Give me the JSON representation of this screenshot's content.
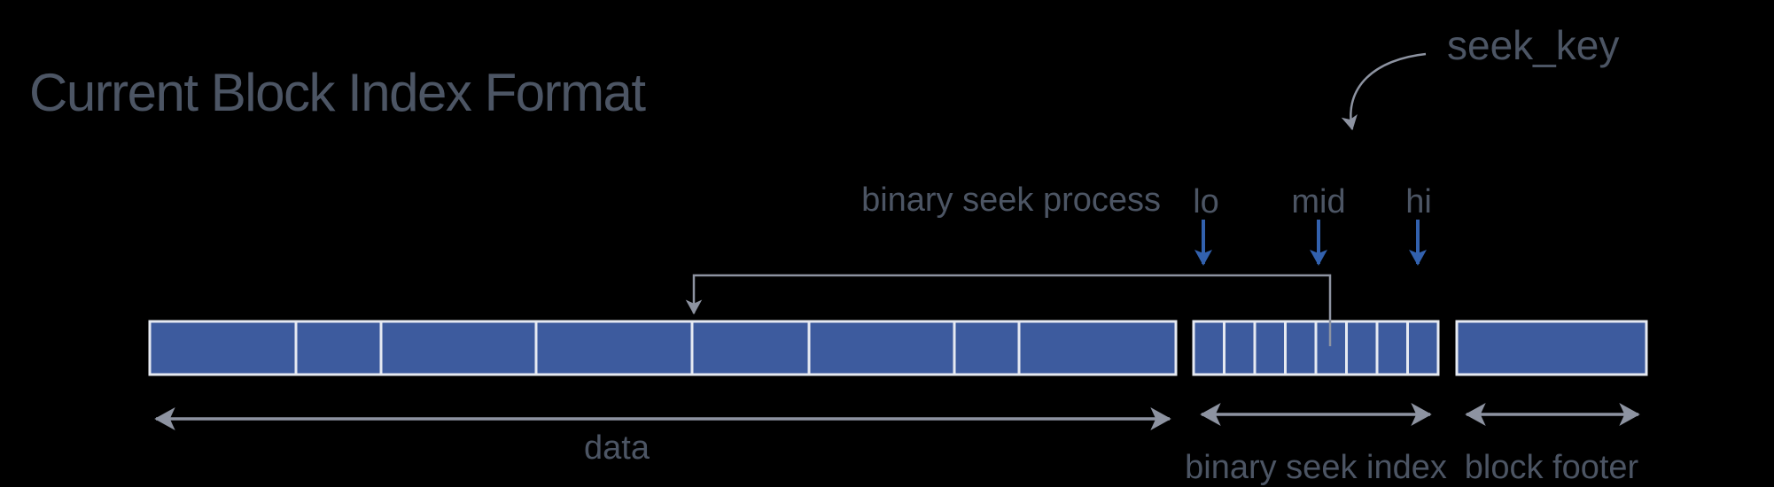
{
  "title": "Current Block Index Format",
  "annotations": {
    "seek_key": "seek_key",
    "binary_seek_process": "binary seek process",
    "lo": "lo",
    "mid": "mid",
    "hi": "hi"
  },
  "regions": {
    "data": {
      "label": "data",
      "segments": 8
    },
    "binary_seek_index": {
      "label": "binary seek index",
      "cells": 8
    },
    "block_footer": {
      "label": "block footer",
      "cells": 1
    }
  },
  "structure": {
    "data_segment_widths": [
      165,
      96,
      175,
      176,
      132,
      164,
      73,
      177
    ],
    "index_cell_count": 8
  },
  "colors": {
    "background": "#000000",
    "text": "#4c5564",
    "block_fill": "#3d5b9e",
    "block_border": "#e6eaf2",
    "connector_gray": "#8d93a1",
    "pointer_blue": "#3261ae"
  }
}
